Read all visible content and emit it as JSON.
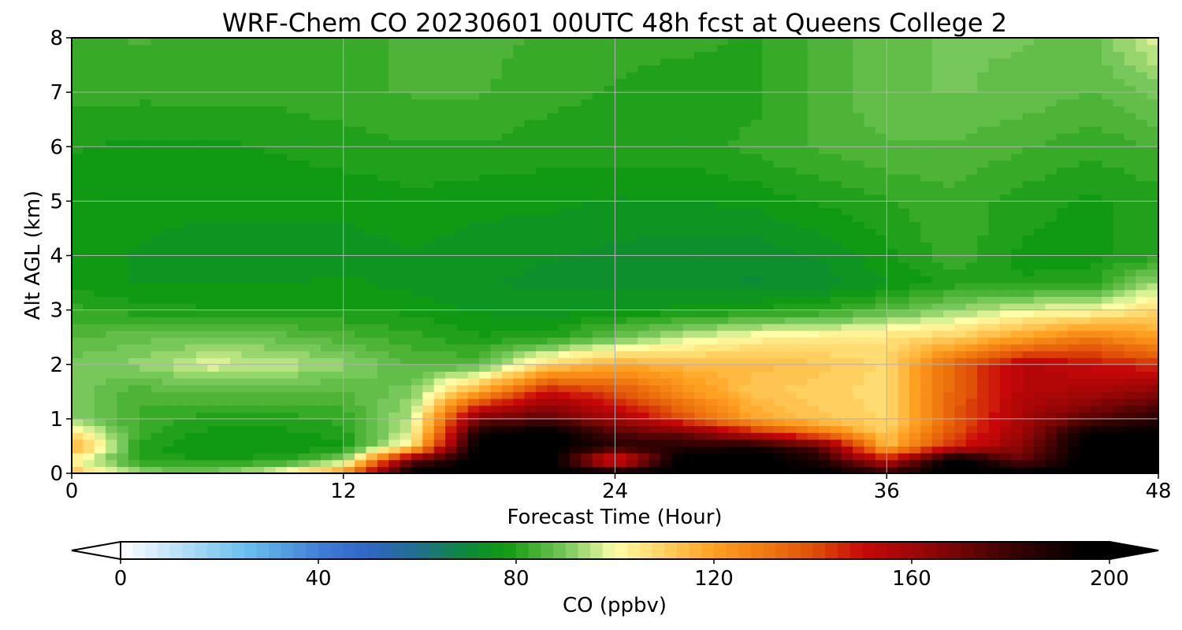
{
  "chart_data": {
    "type": "heatmap",
    "title": "WRF-Chem CO  20230601 00UTC 48h fcst at Queens College 2",
    "xlabel": "Forecast Time (Hour)",
    "ylabel": "Alt AGL (km)",
    "xlim": [
      0,
      48
    ],
    "ylim": [
      0,
      8
    ],
    "x_ticks": [
      "0",
      "12",
      "24",
      "36",
      "48"
    ],
    "y_ticks": [
      "0",
      "1",
      "2",
      "3",
      "4",
      "5",
      "6",
      "7",
      "8"
    ],
    "grid": true,
    "x": [
      0,
      3,
      6,
      9,
      12,
      15,
      18,
      21,
      24,
      27,
      30,
      33,
      36,
      39,
      42,
      45,
      48
    ],
    "y": [
      0,
      0.25,
      0.5,
      0.75,
      1,
      1.5,
      2,
      2.5,
      3,
      3.5,
      4,
      5,
      6,
      7,
      8
    ],
    "z": [
      [
        115,
        93,
        90,
        100,
        125,
        200,
        200,
        200,
        200,
        200,
        200,
        200,
        185,
        200,
        200,
        200,
        200
      ],
      [
        100,
        80,
        79,
        80,
        90,
        170,
        200,
        200,
        135,
        200,
        200,
        185,
        150,
        200,
        170,
        200,
        200
      ],
      [
        120,
        80,
        76,
        76,
        78,
        105,
        200,
        200,
        185,
        185,
        190,
        175,
        115,
        145,
        165,
        200,
        200
      ],
      [
        105,
        83,
        78,
        78,
        80,
        97,
        190,
        200,
        175,
        170,
        150,
        130,
        110,
        140,
        160,
        195,
        195
      ],
      [
        92,
        83,
        80,
        80,
        82,
        95,
        170,
        175,
        160,
        140,
        120,
        112,
        108,
        138,
        158,
        175,
        185
      ],
      [
        90,
        85,
        86,
        86,
        86,
        90,
        120,
        150,
        140,
        125,
        112,
        110,
        107,
        136,
        155,
        158,
        165
      ],
      [
        90,
        92,
        98,
        96,
        92,
        86,
        86,
        108,
        118,
        115,
        115,
        112,
        108,
        136,
        155,
        150,
        145
      ],
      [
        86,
        88,
        89,
        88,
        85,
        82,
        79,
        80,
        88,
        96,
        102,
        104,
        106,
        110,
        120,
        130,
        120
      ],
      [
        82,
        80,
        79,
        78,
        79,
        78,
        76,
        75,
        76,
        77,
        79,
        81,
        86,
        92,
        98,
        100,
        108
      ],
      [
        78,
        76,
        76,
        76,
        77,
        75,
        74,
        73,
        73,
        72,
        71,
        72,
        76,
        80,
        79,
        80,
        94
      ],
      [
        77,
        76,
        75,
        75,
        75,
        76,
        75,
        74,
        73,
        72,
        72,
        74,
        78,
        83,
        78,
        78,
        80
      ],
      [
        78,
        77,
        77,
        77,
        77,
        78,
        77,
        77,
        76,
        76,
        77,
        79,
        81,
        83,
        80,
        78,
        80
      ],
      [
        79,
        78,
        78,
        79,
        80,
        81,
        81,
        80,
        80,
        80,
        82,
        84,
        86,
        86,
        84,
        82,
        84
      ],
      [
        82,
        82,
        82,
        82,
        83,
        84,
        84,
        82,
        81,
        80,
        80,
        85,
        88,
        89,
        88,
        86,
        90
      ],
      [
        83,
        84,
        83,
        83,
        83,
        84,
        85,
        83,
        82,
        82,
        81,
        84,
        88,
        89,
        89,
        88,
        98
      ]
    ],
    "colorbar": {
      "label": "CO  (ppbv)",
      "ticks": [
        "0",
        "40",
        "80",
        "120",
        "160",
        "200"
      ],
      "min": 0,
      "max": 200,
      "extend": "both",
      "colors": [
        [
          0,
          "#ffffff"
        ],
        [
          12,
          "#b7e0f7"
        ],
        [
          25,
          "#6ac1ee"
        ],
        [
          40,
          "#3f7fd6"
        ],
        [
          50,
          "#2f66c5"
        ],
        [
          60,
          "#1f6f8f"
        ],
        [
          70,
          "#0b8a3a"
        ],
        [
          78,
          "#109a10"
        ],
        [
          84,
          "#44b030"
        ],
        [
          90,
          "#77c85a"
        ],
        [
          96,
          "#c4e888"
        ],
        [
          100,
          "#ffffa8"
        ],
        [
          110,
          "#ffd060"
        ],
        [
          120,
          "#ffa020"
        ],
        [
          130,
          "#f07a10"
        ],
        [
          140,
          "#e05008"
        ],
        [
          150,
          "#c80808"
        ],
        [
          165,
          "#8a0606"
        ],
        [
          180,
          "#3a0202"
        ],
        [
          195,
          "#000000"
        ],
        [
          200,
          "#000000"
        ]
      ]
    }
  }
}
